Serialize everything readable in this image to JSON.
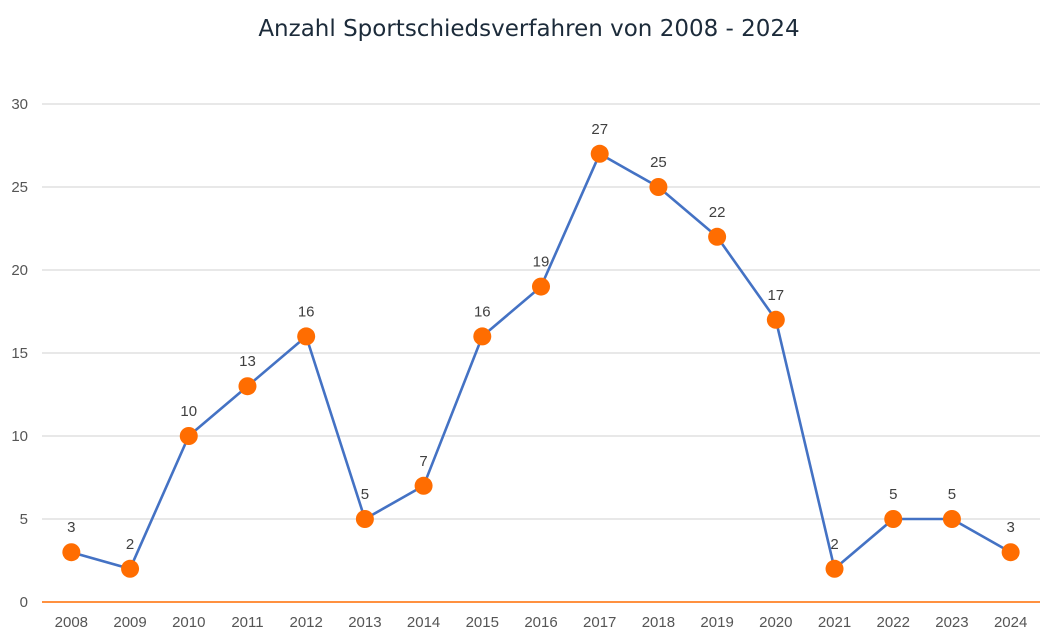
{
  "chart_data": {
    "type": "line",
    "title": "Anzahl Sportschiedsverfahren von 2008 - 2024",
    "xlabel": "",
    "ylabel": "",
    "categories": [
      "2008",
      "2009",
      "2010",
      "2011",
      "2012",
      "2013",
      "2014",
      "2015",
      "2016",
      "2017",
      "2018",
      "2019",
      "2020",
      "2021",
      "2022",
      "2023",
      "2024"
    ],
    "series": [
      {
        "name": "Anzahl Sportschiedsverfahren",
        "values": [
          3,
          2,
          10,
          13,
          16,
          5,
          7,
          16,
          19,
          27,
          25,
          22,
          17,
          2,
          5,
          5,
          3
        ]
      }
    ],
    "ylim": [
      0,
      30
    ],
    "yticks": [
      0,
      5,
      10,
      15,
      20,
      25,
      30
    ],
    "grid": true,
    "legend": "none",
    "data_labels": true,
    "colors": {
      "line": "#4472c4",
      "marker": "#ff6d01",
      "axis": "#ff6d01",
      "grid": "#d9d9d9"
    }
  }
}
